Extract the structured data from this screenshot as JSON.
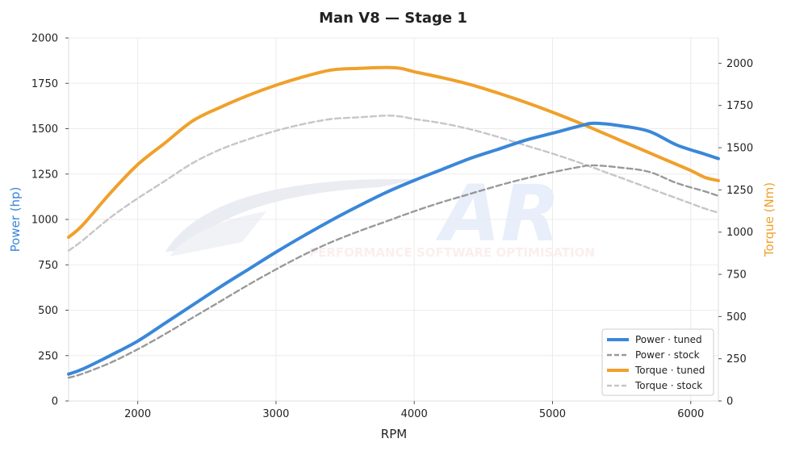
{
  "chart_data": {
    "type": "line",
    "title": "Man V8 — Stage 1",
    "xlabel": "RPM",
    "ylabel_left": "Power (hp)",
    "ylabel_right": "Torque (Nm)",
    "xlim": [
      1500,
      6200
    ],
    "ylim_left": [
      0,
      2000
    ],
    "ylim_right": [
      0,
      2150
    ],
    "x_ticks": [
      2000,
      3000,
      4000,
      5000,
      6000
    ],
    "y_left_ticks": [
      0,
      250,
      500,
      750,
      1000,
      1250,
      1500,
      1750,
      2000
    ],
    "y_right_ticks": [
      0,
      250,
      500,
      750,
      1000,
      1250,
      1500,
      1750,
      2000
    ],
    "grid": true,
    "legend_position": "bottom-right",
    "colors": {
      "power": "#3a87d8",
      "torque": "#f0a02b",
      "power_stock": "#999999",
      "torque_stock": "#c6c6c6",
      "power_axis": "#3a87d8",
      "torque_axis": "#f0a02b"
    },
    "watermark": {
      "logo": "AR",
      "text": "PERFORMANCE SOFTWARE OPTIMISATION"
    },
    "series": [
      {
        "name": "Power · tuned",
        "axis": "left",
        "style": "solid",
        "x": [
          1500,
          1600,
          1800,
          2000,
          2200,
          2400,
          2600,
          2800,
          3000,
          3200,
          3400,
          3600,
          3800,
          4000,
          4200,
          4400,
          4600,
          4800,
          5000,
          5200,
          5300,
          5500,
          5700,
          5900,
          6100,
          6200
        ],
        "y": [
          148,
          175,
          250,
          330,
          430,
          530,
          630,
          725,
          820,
          910,
          995,
          1075,
          1150,
          1215,
          1275,
          1335,
          1385,
          1435,
          1475,
          1515,
          1530,
          1515,
          1485,
          1410,
          1360,
          1335
        ]
      },
      {
        "name": "Power · stock",
        "axis": "left",
        "style": "dashed",
        "x": [
          1500,
          1600,
          1800,
          2000,
          2200,
          2400,
          2600,
          2800,
          3000,
          3200,
          3400,
          3600,
          3800,
          4000,
          4200,
          4400,
          4600,
          4800,
          5000,
          5200,
          5300,
          5500,
          5700,
          5900,
          6100,
          6200
        ],
        "y": [
          128,
          150,
          210,
          285,
          370,
          460,
          550,
          640,
          725,
          805,
          875,
          935,
          990,
          1045,
          1095,
          1140,
          1185,
          1225,
          1260,
          1290,
          1298,
          1285,
          1262,
          1200,
          1155,
          1130
        ]
      },
      {
        "name": "Torque · tuned",
        "axis": "right",
        "style": "solid",
        "x": [
          1500,
          1600,
          1800,
          2000,
          2200,
          2400,
          2600,
          2800,
          3000,
          3200,
          3400,
          3600,
          3800,
          3900,
          4000,
          4200,
          4400,
          4600,
          4800,
          5000,
          5200,
          5400,
          5600,
          5800,
          6000,
          6100,
          6200
        ],
        "y": [
          970,
          1040,
          1230,
          1400,
          1530,
          1660,
          1740,
          1810,
          1870,
          1920,
          1960,
          1970,
          1975,
          1970,
          1950,
          1915,
          1875,
          1825,
          1770,
          1710,
          1645,
          1575,
          1505,
          1435,
          1365,
          1325,
          1305
        ]
      },
      {
        "name": "Torque · stock",
        "axis": "right",
        "style": "dashed",
        "x": [
          1500,
          1600,
          1800,
          2000,
          2200,
          2400,
          2600,
          2800,
          3000,
          3200,
          3400,
          3600,
          3800,
          3900,
          4000,
          4200,
          4400,
          4600,
          4800,
          5000,
          5200,
          5400,
          5600,
          5800,
          6000,
          6100,
          6200
        ],
        "y": [
          890,
          950,
          1085,
          1200,
          1305,
          1410,
          1490,
          1550,
          1600,
          1640,
          1670,
          1680,
          1690,
          1685,
          1670,
          1645,
          1610,
          1565,
          1515,
          1465,
          1410,
          1350,
          1290,
          1230,
          1170,
          1140,
          1115
        ]
      }
    ]
  }
}
